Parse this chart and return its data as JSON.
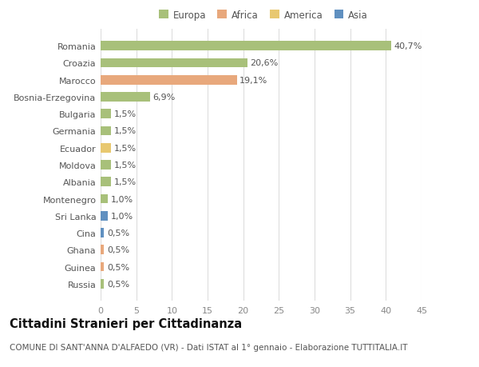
{
  "categories": [
    "Russia",
    "Guinea",
    "Ghana",
    "Cina",
    "Sri Lanka",
    "Montenegro",
    "Albania",
    "Moldova",
    "Ecuador",
    "Germania",
    "Bulgaria",
    "Bosnia-Erzegovina",
    "Marocco",
    "Croazia",
    "Romania"
  ],
  "values": [
    0.5,
    0.5,
    0.5,
    0.5,
    1.0,
    1.0,
    1.5,
    1.5,
    1.5,
    1.5,
    1.5,
    6.9,
    19.1,
    20.6,
    40.7
  ],
  "labels": [
    "0,5%",
    "0,5%",
    "0,5%",
    "0,5%",
    "1,0%",
    "1,0%",
    "1,5%",
    "1,5%",
    "1,5%",
    "1,5%",
    "1,5%",
    "6,9%",
    "19,1%",
    "20,6%",
    "40,7%"
  ],
  "colors": [
    "#a8c07a",
    "#e8a87c",
    "#e8a87c",
    "#6090c0",
    "#6090c0",
    "#a8c07a",
    "#a8c07a",
    "#a8c07a",
    "#e8c870",
    "#a8c07a",
    "#a8c07a",
    "#a8c07a",
    "#e8a87c",
    "#a8c07a",
    "#a8c07a"
  ],
  "legend": {
    "Europa": "#a8c07a",
    "Africa": "#e8a87c",
    "America": "#e8c870",
    "Asia": "#6090c0"
  },
  "xlim": [
    0,
    45
  ],
  "xticks": [
    0,
    5,
    10,
    15,
    20,
    25,
    30,
    35,
    40,
    45
  ],
  "title": "Cittadini Stranieri per Cittadinanza",
  "subtitle": "COMUNE DI SANT'ANNA D'ALFAEDO (VR) - Dati ISTAT al 1° gennaio - Elaborazione TUTTITALIA.IT",
  "bg_color": "#ffffff",
  "grid_color": "#dddddd",
  "bar_height": 0.55,
  "label_fontsize": 8,
  "tick_fontsize": 8,
  "title_fontsize": 10.5,
  "subtitle_fontsize": 7.5
}
